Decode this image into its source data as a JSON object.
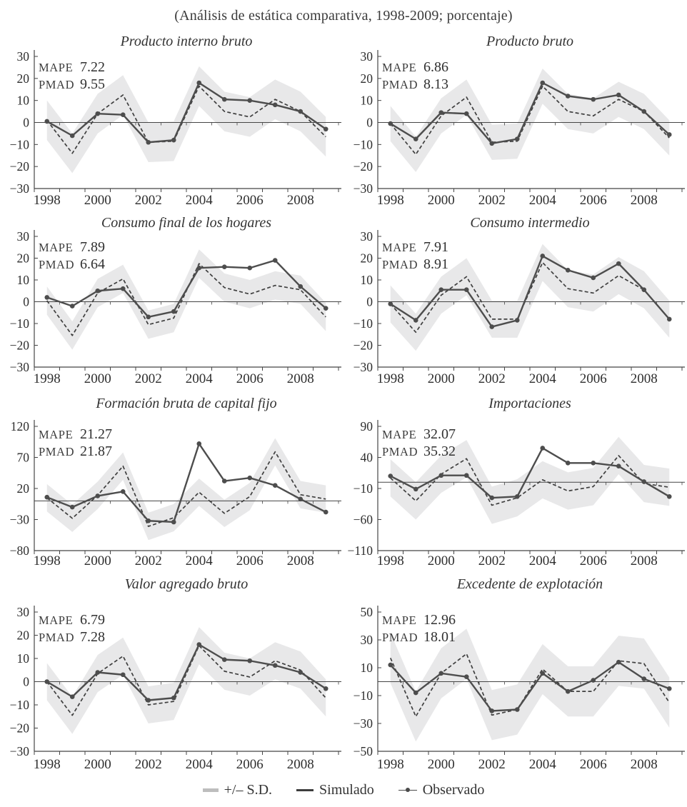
{
  "figure_title": "(Análisis de estática comparativa, 1998-2009; porcentaje)",
  "legend": {
    "sd_label": "+/– S.D.",
    "simulado_label": "Simulado",
    "observado_label": "Observado"
  },
  "colors": {
    "band": "#e8e8e9",
    "simulado_line": "#3f3f3f",
    "observado_line": "#4d4d4d",
    "axis": "#454545",
    "text": "#2e2e2e"
  },
  "years": [
    1998,
    1999,
    2000,
    2001,
    2002,
    2003,
    2004,
    2005,
    2006,
    2007,
    2008,
    2009
  ],
  "x_tick_labels": [
    "1998",
    "2000",
    "2002",
    "2004",
    "2006",
    "2008"
  ],
  "chart_data": [
    {
      "type": "line",
      "title": "Producto interno bruto",
      "mape_label": "MAPE",
      "mape": "7.22",
      "pmad_label": "PMAD",
      "pmad": "9.55",
      "ylim": [
        -30,
        30
      ],
      "yticks": [
        30,
        20,
        10,
        0,
        -10,
        -20,
        -30
      ],
      "band_halfwidth": 9,
      "series": [
        {
          "name": "Simulado",
          "style": "dashed",
          "values": [
            1,
            -14,
            4,
            12.5,
            -9,
            -8.5,
            16.5,
            5,
            2.5,
            10.5,
            5,
            -6.5
          ]
        },
        {
          "name": "Observado",
          "style": "solid-markers",
          "values": [
            0.5,
            -6,
            4,
            3.5,
            -9,
            -8,
            18,
            10.5,
            10,
            8,
            5,
            -3
          ]
        }
      ]
    },
    {
      "type": "line",
      "title": "Producto bruto",
      "mape_label": "MAPE",
      "mape": "6.86",
      "pmad_label": "PMAD",
      "pmad": "8.13",
      "ylim": [
        -30,
        30
      ],
      "yticks": [
        30,
        20,
        10,
        0,
        -10,
        -20,
        -30
      ],
      "band_halfwidth": 8,
      "series": [
        {
          "name": "Simulado",
          "style": "dashed",
          "values": [
            -0.5,
            -14.5,
            3,
            11.5,
            -9,
            -8.5,
            16.5,
            5,
            3,
            10.5,
            5,
            -7
          ]
        },
        {
          "name": "Observado",
          "style": "solid-markers",
          "values": [
            -0.5,
            -7.5,
            4.5,
            4,
            -9.5,
            -7.5,
            18,
            12,
            10.5,
            12.5,
            5,
            -5.5
          ]
        }
      ]
    },
    {
      "type": "line",
      "title": "Consumo final de los hogares",
      "mape_label": "MAPE",
      "mape": "7.89",
      "pmad_label": "PMAD",
      "pmad": "6.64",
      "ylim": [
        -30,
        30
      ],
      "yticks": [
        30,
        20,
        10,
        0,
        -10,
        -20,
        -30
      ],
      "band_halfwidth": 6.5,
      "series": [
        {
          "name": "Simulado",
          "style": "dashed",
          "values": [
            0.5,
            -15.5,
            4,
            10.5,
            -10.5,
            -7.5,
            17.5,
            6.5,
            3.5,
            7.5,
            5.5,
            -7
          ]
        },
        {
          "name": "Observado",
          "style": "solid-markers",
          "values": [
            2,
            -2,
            5,
            6,
            -7,
            -4.5,
            15.5,
            16,
            15.5,
            19,
            7,
            -3
          ]
        }
      ]
    },
    {
      "type": "line",
      "title": "Consumo intermedio",
      "mape_label": "MAPE",
      "mape": "7.91",
      "pmad_label": "PMAD",
      "pmad": "8.91",
      "ylim": [
        -30,
        30
      ],
      "yticks": [
        30,
        20,
        10,
        0,
        -10,
        -20,
        -30
      ],
      "band_halfwidth": 8.5,
      "series": [
        {
          "name": "Simulado",
          "style": "dashed",
          "values": [
            -1,
            -14,
            3,
            11.5,
            -8,
            -8,
            18,
            6,
            4,
            12,
            5.5,
            -8
          ]
        },
        {
          "name": "Observado",
          "style": "solid-markers",
          "values": [
            -1,
            -8.5,
            5.5,
            5.5,
            -11.5,
            -8.5,
            21,
            14.5,
            11,
            17.5,
            5.5,
            -8
          ]
        }
      ]
    },
    {
      "type": "line",
      "title": "Formación bruta de capital fijo",
      "mape_label": "MAPE",
      "mape": "21.27",
      "pmad_label": "PMAD",
      "pmad": "21.87",
      "ylim": [
        -80,
        120
      ],
      "yticks": [
        120,
        70,
        20,
        -30,
        -80
      ],
      "band_halfwidth": 22,
      "series": [
        {
          "name": "Simulado",
          "style": "dashed",
          "values": [
            5,
            -28,
            9,
            56,
            -41,
            -27,
            14,
            -20,
            7,
            79,
            10,
            3
          ]
        },
        {
          "name": "Observado",
          "style": "solid-markers",
          "values": [
            6,
            -10,
            8,
            15,
            -32,
            -34,
            92,
            32,
            37,
            25,
            3,
            -18
          ]
        }
      ]
    },
    {
      "type": "line",
      "title": "Importaciones",
      "mape_label": "MAPE",
      "mape": "32.07",
      "pmad_label": "PMAD",
      "pmad": "35.32",
      "ylim": [
        -110,
        90
      ],
      "yticks": [
        90,
        40,
        -10,
        -60,
        -110
      ],
      "band_halfwidth": 30,
      "series": [
        {
          "name": "Simulado",
          "style": "dashed",
          "values": [
            7,
            -30,
            13,
            38,
            -37,
            -25,
            4,
            -14,
            -7,
            43,
            -2,
            -8
          ]
        },
        {
          "name": "Observado",
          "style": "solid-markers",
          "values": [
            10,
            -11,
            11,
            11,
            -25,
            -23,
            55,
            31,
            31,
            26,
            1,
            -23
          ]
        }
      ]
    },
    {
      "type": "line",
      "title": "Valor agregado bruto",
      "mape_label": "MAPE",
      "mape": "6.79",
      "pmad_label": "PMAD",
      "pmad": "7.28",
      "ylim": [
        -30,
        30
      ],
      "yticks": [
        30,
        20,
        10,
        0,
        -10,
        -20,
        -30
      ],
      "band_halfwidth": 8,
      "series": [
        {
          "name": "Simulado",
          "style": "dashed",
          "values": [
            0,
            -14.5,
            3.5,
            11,
            -10,
            -8.5,
            15.5,
            4.5,
            2,
            9,
            5,
            -7
          ]
        },
        {
          "name": "Observado",
          "style": "solid-markers",
          "values": [
            0,
            -6.5,
            4,
            3,
            -8,
            -7,
            16,
            9.5,
            9,
            7,
            4,
            -3
          ]
        }
      ]
    },
    {
      "type": "line",
      "title": "Excedente de explotación",
      "mape_label": "MAPE",
      "mape": "12.96",
      "pmad_label": "PMAD",
      "pmad": "18.01",
      "ylim": [
        -50,
        50
      ],
      "yticks": [
        50,
        30,
        10,
        -10,
        -30,
        -50
      ],
      "band_halfwidth": 18,
      "series": [
        {
          "name": "Simulado",
          "style": "dashed",
          "values": [
            17,
            -25,
            6,
            20,
            -24,
            -20,
            9,
            -7,
            -7,
            15,
            13,
            -15
          ]
        },
        {
          "name": "Observado",
          "style": "solid-markers",
          "values": [
            12,
            -8,
            6,
            3.5,
            -21,
            -20,
            6,
            -7,
            1,
            14,
            2,
            -5
          ]
        }
      ]
    }
  ]
}
